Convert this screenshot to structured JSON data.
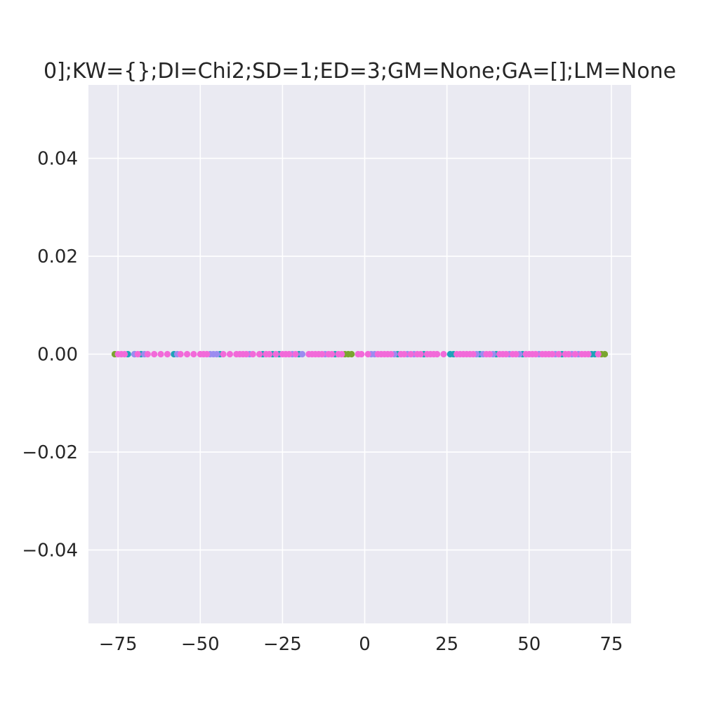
{
  "chart_data": {
    "type": "scatter",
    "title": "0];KW={};DI=Chi2;SD=1;ED=3;GM=None;GA=[];LM=None",
    "xlabel": "",
    "ylabel": "",
    "xlim": [
      -84,
      81
    ],
    "ylim": [
      -0.055,
      0.055
    ],
    "grid": true,
    "legend": "none",
    "colors": {
      "background": "#eaeaf2",
      "grid": "#ffffff",
      "series": [
        "#7aa52f",
        "#1fa3b8",
        "#9b8cf0",
        "#f26ad9"
      ]
    },
    "x_ticks": [
      {
        "value": -75,
        "label": "−75"
      },
      {
        "value": -50,
        "label": "−50"
      },
      {
        "value": -25,
        "label": "−25"
      },
      {
        "value": 0,
        "label": "0"
      },
      {
        "value": 25,
        "label": "25"
      },
      {
        "value": 50,
        "label": "50"
      },
      {
        "value": 75,
        "label": "75"
      }
    ],
    "y_ticks": [
      {
        "value": 0.04,
        "label": "0.04"
      },
      {
        "value": 0.02,
        "label": "0.02"
      },
      {
        "value": 0.0,
        "label": "0.00"
      },
      {
        "value": -0.02,
        "label": "−0.02"
      },
      {
        "value": -0.04,
        "label": "−0.04"
      }
    ],
    "series": [
      {
        "color": "#7aa52f",
        "x": [
          -76,
          -6,
          -5,
          -4,
          73,
          72
        ],
        "y": [
          0,
          0,
          0,
          0,
          0,
          0
        ]
      },
      {
        "color": "#1fa3b8",
        "x": [
          -72,
          -70,
          -68,
          -58,
          -44,
          -31,
          -28,
          -26,
          -20,
          -9,
          10,
          18,
          26,
          27,
          35,
          40,
          48,
          60,
          69,
          70
        ],
        "y": [
          0,
          0,
          0,
          0,
          0,
          0,
          0,
          0,
          0,
          0,
          0,
          0,
          0,
          0,
          0,
          0,
          0,
          0,
          0,
          0
        ]
      },
      {
        "color": "#9b8cf0",
        "x": [
          -70,
          -67,
          -57,
          -47,
          -46,
          -45,
          -35,
          -22,
          -19,
          -12,
          2,
          3,
          9,
          13,
          15,
          34,
          36,
          39,
          44,
          47,
          53,
          58,
          63,
          65
        ],
        "y": [
          0,
          0,
          0,
          0,
          0,
          0,
          0,
          0,
          0,
          0,
          0,
          0,
          0,
          0,
          0,
          0,
          0,
          0,
          0,
          0,
          0,
          0,
          0,
          0
        ]
      },
      {
        "color": "#f26ad9",
        "x": [
          -75,
          -74,
          -73,
          -69,
          -66,
          -64,
          -62,
          -60,
          -56,
          -54,
          -52,
          -50,
          -49,
          -48,
          -43,
          -41,
          -39,
          -38,
          -37,
          -36,
          -34,
          -32,
          -30,
          -29,
          -27,
          -25,
          -24,
          -23,
          -21,
          -17,
          -16,
          -15,
          -14,
          -13,
          -11,
          -10,
          -8,
          -7,
          -2,
          -1,
          1,
          4,
          5,
          6,
          7,
          8,
          11,
          12,
          14,
          16,
          17,
          19,
          20,
          21,
          22,
          24,
          28,
          29,
          30,
          31,
          32,
          33,
          37,
          38,
          41,
          42,
          43,
          45,
          46,
          49,
          50,
          51,
          52,
          54,
          55,
          56,
          57,
          59,
          61,
          62,
          64,
          66,
          67,
          68,
          71
        ],
        "y": [
          0,
          0,
          0,
          0,
          0,
          0,
          0,
          0,
          0,
          0,
          0,
          0,
          0,
          0,
          0,
          0,
          0,
          0,
          0,
          0,
          0,
          0,
          0,
          0,
          0,
          0,
          0,
          0,
          0,
          0,
          0,
          0,
          0,
          0,
          0,
          0,
          0,
          0,
          0,
          0,
          0,
          0,
          0,
          0,
          0,
          0,
          0,
          0,
          0,
          0,
          0,
          0,
          0,
          0,
          0,
          0,
          0,
          0,
          0,
          0,
          0,
          0,
          0,
          0,
          0,
          0,
          0,
          0,
          0,
          0,
          0,
          0,
          0,
          0,
          0,
          0,
          0,
          0,
          0,
          0,
          0,
          0,
          0,
          0,
          0
        ]
      }
    ]
  }
}
